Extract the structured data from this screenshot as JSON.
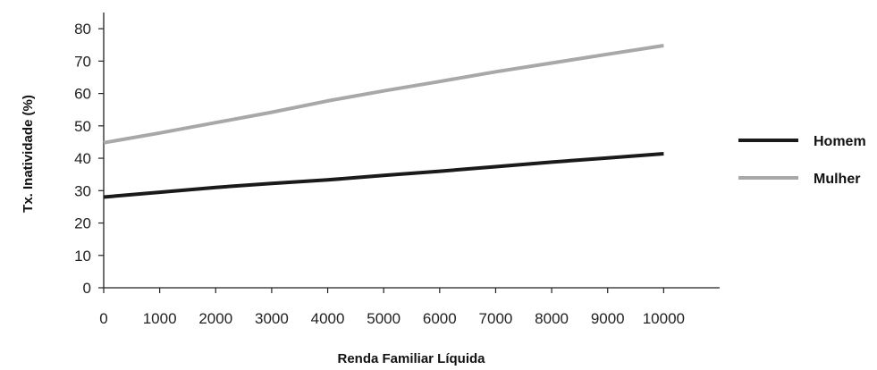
{
  "chart_data": {
    "type": "line",
    "title": "",
    "xlabel": "Renda Familiar Líquida",
    "ylabel": "Tx. Inatividade (%)",
    "x": [
      0,
      1000,
      2000,
      3000,
      4000,
      5000,
      6000,
      7000,
      8000,
      9000,
      10000
    ],
    "x_tick_labels": [
      "0",
      "1000",
      "2000",
      "3000",
      "4000",
      "5000",
      "6000",
      "7000",
      "8000",
      "9000",
      "10000"
    ],
    "y_ticks": [
      0,
      10,
      20,
      30,
      40,
      50,
      60,
      70,
      80
    ],
    "y_tick_labels": [
      "0",
      "10",
      "20",
      "30",
      "40",
      "50",
      "60",
      "70",
      "80"
    ],
    "xlim": [
      0,
      11000
    ],
    "ylim": [
      0,
      85
    ],
    "grid": false,
    "legend_position": "right",
    "series": [
      {
        "name": "Homem",
        "color": "#1a1a1a",
        "values": [
          28,
          29.5,
          31,
          32.2,
          33.3,
          34.7,
          36,
          37.4,
          38.8,
          40.1,
          41.4
        ]
      },
      {
        "name": "Mulher",
        "color": "#a8a8a8",
        "values": [
          44.8,
          47.8,
          51,
          54.2,
          57.7,
          60.8,
          63.7,
          66.7,
          69.4,
          72.1,
          74.8
        ]
      }
    ]
  }
}
